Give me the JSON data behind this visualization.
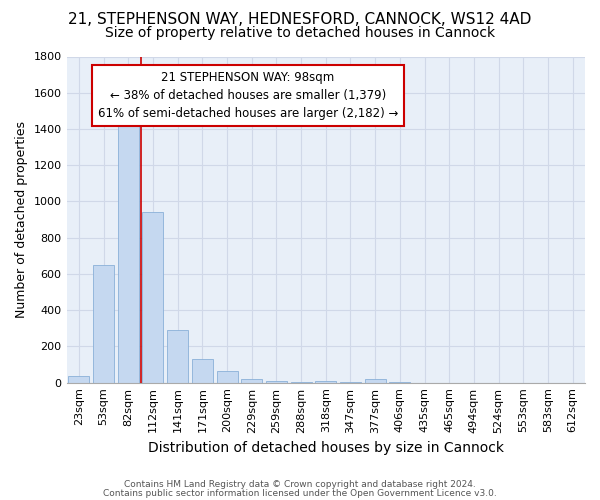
{
  "title_line1": "21, STEPHENSON WAY, HEDNESFORD, CANNOCK, WS12 4AD",
  "title_line2": "Size of property relative to detached houses in Cannock",
  "xlabel": "Distribution of detached houses by size in Cannock",
  "ylabel": "Number of detached properties",
  "categories": [
    "23sqm",
    "53sqm",
    "82sqm",
    "112sqm",
    "141sqm",
    "171sqm",
    "200sqm",
    "229sqm",
    "259sqm",
    "288sqm",
    "318sqm",
    "347sqm",
    "377sqm",
    "406sqm",
    "435sqm",
    "465sqm",
    "494sqm",
    "524sqm",
    "553sqm",
    "583sqm",
    "612sqm"
  ],
  "values": [
    38,
    650,
    1480,
    940,
    290,
    130,
    62,
    22,
    10,
    5,
    8,
    5,
    18,
    2,
    0,
    0,
    0,
    0,
    0,
    0,
    0
  ],
  "bar_color": "#c5d8f0",
  "bar_edge_color": "#8ab0d8",
  "vline_x_index": 2.5,
  "vline_color": "#cc0000",
  "annotation_text": "21 STEPHENSON WAY: 98sqm\n← 38% of detached houses are smaller (1,379)\n61% of semi-detached houses are larger (2,182) →",
  "ylim": [
    0,
    1800
  ],
  "background_color": "#e8eff8",
  "grid_color": "#d0d8e8",
  "footer_line1": "Contains HM Land Registry data © Crown copyright and database right 2024.",
  "footer_line2": "Contains public sector information licensed under the Open Government Licence v3.0.",
  "title_fontsize": 11,
  "subtitle_fontsize": 10,
  "tick_fontsize": 8,
  "ylabel_fontsize": 9,
  "xlabel_fontsize": 10,
  "annotation_fontsize": 8.5
}
